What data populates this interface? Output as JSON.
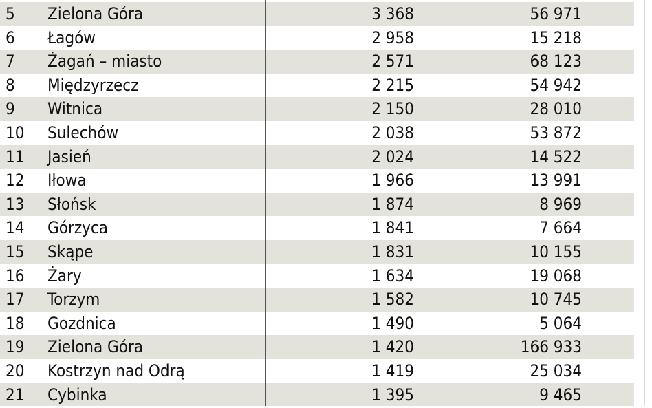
{
  "colors": {
    "shaded_row": "#e3e3dc",
    "text": "#111111",
    "divider": "#555555"
  },
  "rows": [
    {
      "rank": "5",
      "name": "Zielona Góra",
      "value1": "3 368",
      "value2": "56 971"
    },
    {
      "rank": "6",
      "name": "Łagów",
      "value1": "2 958",
      "value2": "15 218"
    },
    {
      "rank": "7",
      "name": "Żagań – miasto",
      "value1": "2 571",
      "value2": "68 123"
    },
    {
      "rank": "8",
      "name": "Międzyrzecz",
      "value1": "2 215",
      "value2": "54 942"
    },
    {
      "rank": "9",
      "name": "Witnica",
      "value1": "2 150",
      "value2": "28 010"
    },
    {
      "rank": "10",
      "name": "Sulechów",
      "value1": "2 038",
      "value2": "53 872"
    },
    {
      "rank": "11",
      "name": "Jasień",
      "value1": "2 024",
      "value2": "14 522"
    },
    {
      "rank": "12",
      "name": "Iłowa",
      "value1": "1 966",
      "value2": "13 991"
    },
    {
      "rank": "13",
      "name": "Słońsk",
      "value1": "1 874",
      "value2": "8 969"
    },
    {
      "rank": "14",
      "name": "Górzyca",
      "value1": "1 841",
      "value2": "7 664"
    },
    {
      "rank": "15",
      "name": "Skąpe",
      "value1": "1 831",
      "value2": "10 155"
    },
    {
      "rank": "16",
      "name": "Żary",
      "value1": "1 634",
      "value2": "19 068"
    },
    {
      "rank": "17",
      "name": "Torzym",
      "value1": "1 582",
      "value2": "10 745"
    },
    {
      "rank": "18",
      "name": "Gozdnica",
      "value1": "1 490",
      "value2": "5 064"
    },
    {
      "rank": "19",
      "name": "Zielona Góra",
      "value1": "1 420",
      "value2": "166 933"
    },
    {
      "rank": "20",
      "name": "Kostrzyn nad Odrą",
      "value1": "1 419",
      "value2": "25 034"
    },
    {
      "rank": "21",
      "name": "Cybinka",
      "value1": "1 395",
      "value2": "9 465"
    }
  ]
}
